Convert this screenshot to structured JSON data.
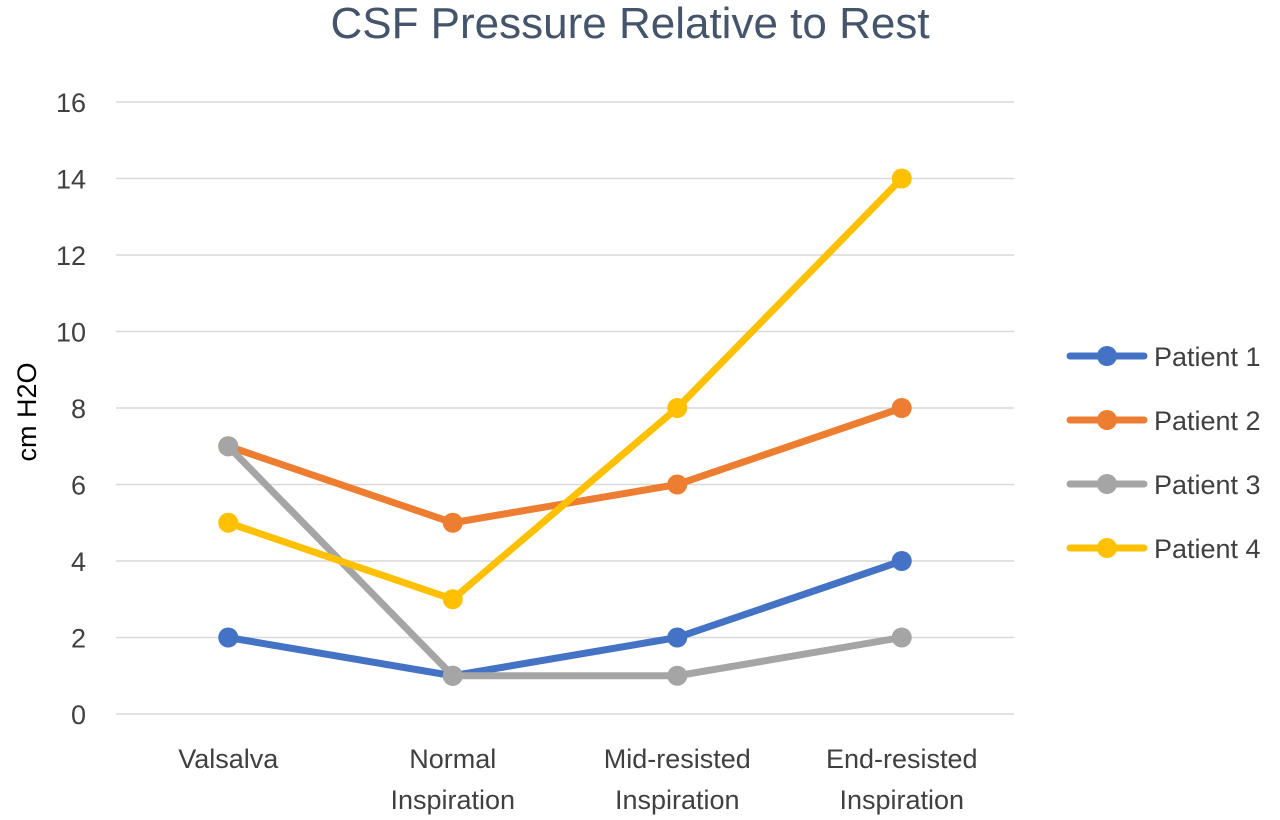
{
  "chart_data": {
    "type": "line",
    "title": "CSF Pressure Relative to Rest",
    "ylabel": "cm H2O",
    "xlabel": "",
    "categories": [
      [
        "Valsalva"
      ],
      [
        "Normal",
        "Inspiration"
      ],
      [
        "Mid-resisted",
        "Inspiration"
      ],
      [
        "End-resisted",
        "Inspiration"
      ]
    ],
    "yticks": [
      "0",
      "2",
      "4",
      "6",
      "8",
      "10",
      "12",
      "14",
      "16"
    ],
    "ylim": [
      0,
      16
    ],
    "grid": true,
    "legend_position": "right",
    "series": [
      {
        "name": "Patient 1",
        "color": "#4472c4",
        "values": [
          2,
          1,
          2,
          4
        ]
      },
      {
        "name": "Patient 2",
        "color": "#ed7d31",
        "values": [
          7,
          5,
          6,
          8
        ]
      },
      {
        "name": "Patient 3",
        "color": "#a5a5a5",
        "values": [
          7,
          1,
          1,
          2
        ]
      },
      {
        "name": "Patient 4",
        "color": "#ffc000",
        "values": [
          5,
          3,
          8,
          14
        ]
      }
    ]
  }
}
